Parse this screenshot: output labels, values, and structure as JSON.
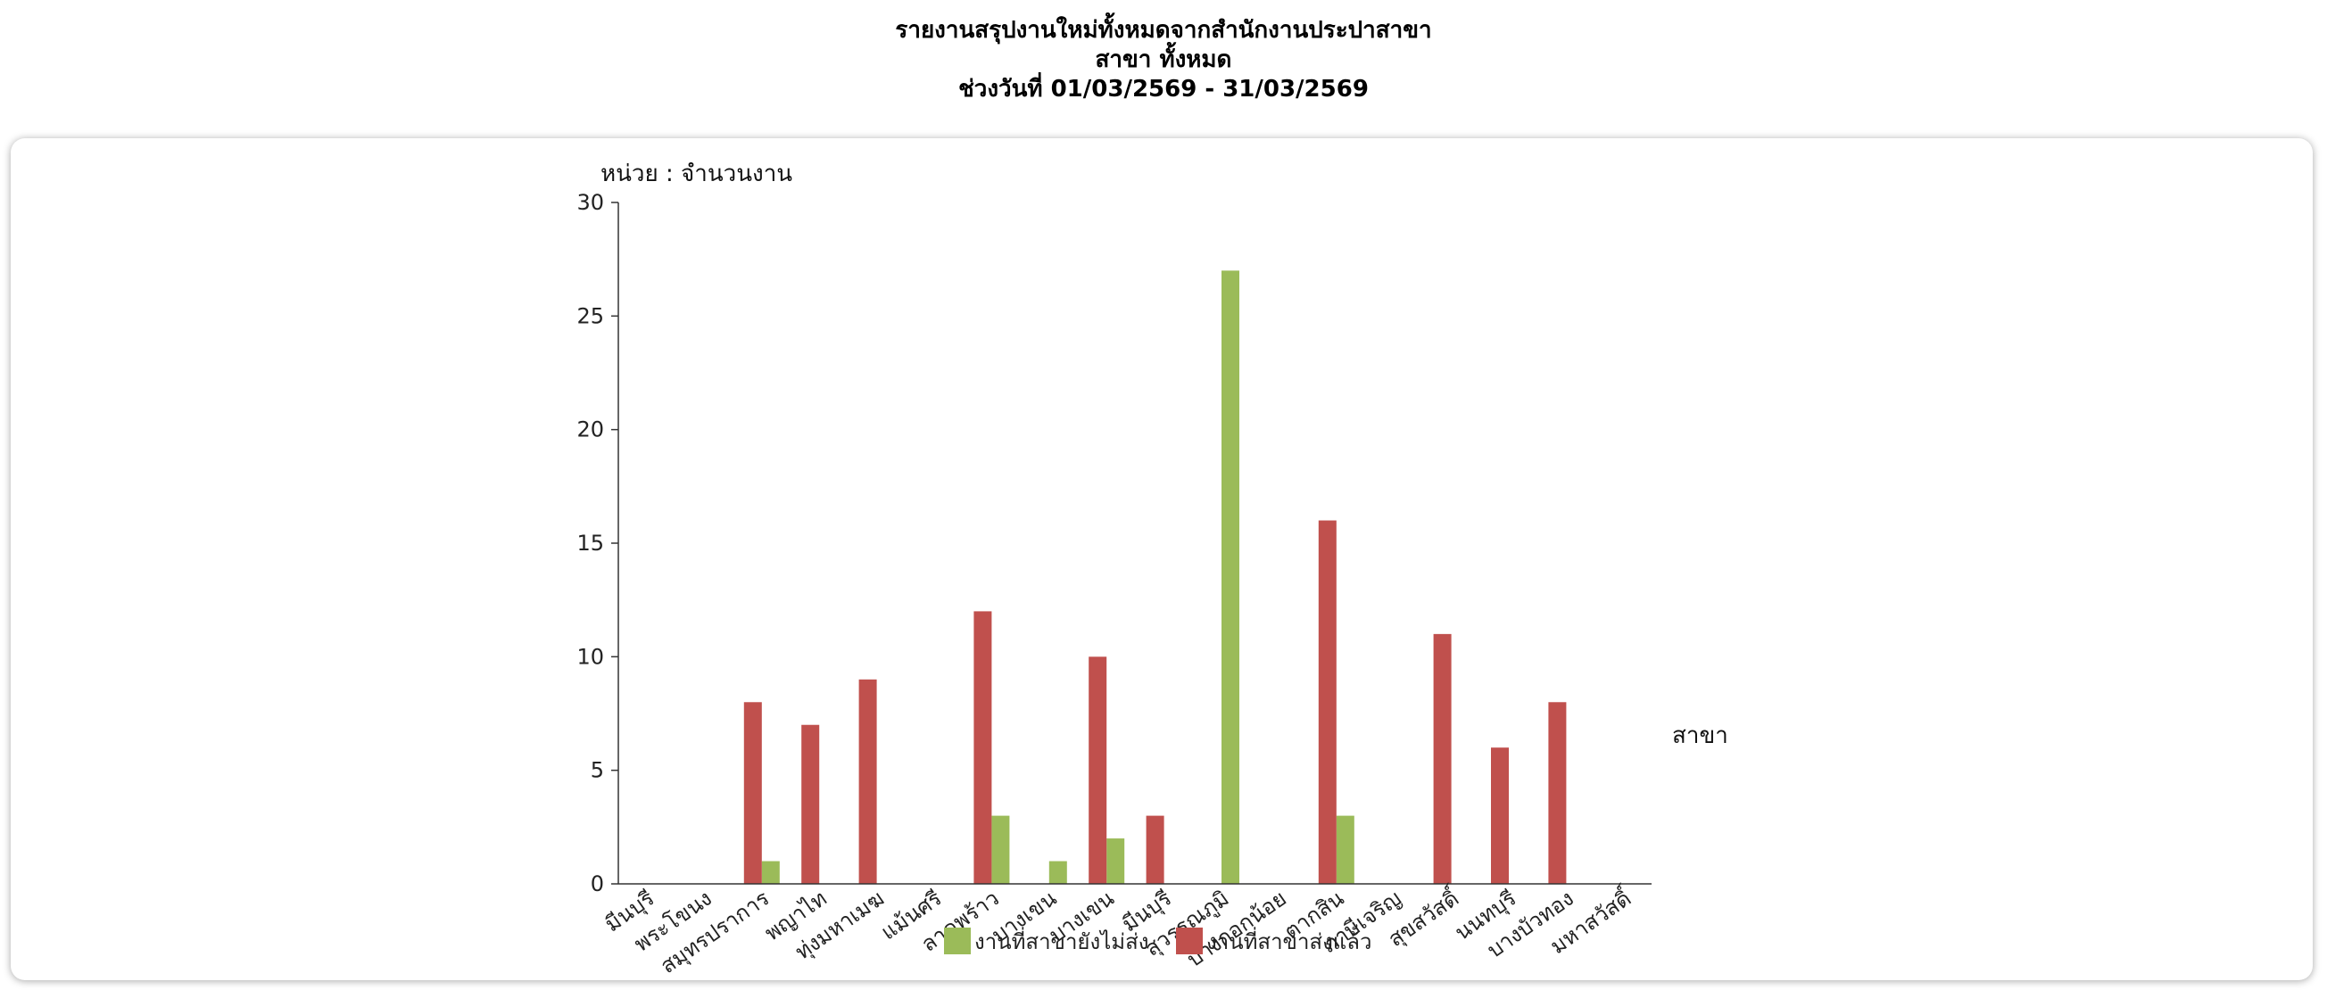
{
  "header": {
    "line1": "รายงานสรุปงานใหม่ทั้งหมดจากสำนักงานประปาสาขา",
    "line2": "สาขา ทั้งหมด",
    "line3": "ช่วงวันที่ 01/03/2569 - 31/03/2569"
  },
  "chart_data": {
    "type": "bar",
    "title": "",
    "ylabel": "หน่วย : จำนวนงาน",
    "xlabel": "สาขา",
    "ylim": [
      0,
      30
    ],
    "yticks": [
      0,
      5,
      10,
      15,
      20,
      25,
      30
    ],
    "grid": false,
    "legend_position": "bottom",
    "categories": [
      "มีนบุรี",
      "พระโขนง",
      "สมุทรปราการ",
      "พญาไท",
      "ทุ่งมหาเมฆ",
      "แม้นศรี",
      "ลาดพร้าว",
      "บางเขน",
      "บางเขน",
      "มีนบุรี",
      "สุวรรณภูมิ",
      "บางกอกน้อย",
      "ตากสิน",
      "ภาษีเจริญ",
      "สุขสวัสดิ์",
      "นนทบุรี",
      "บางบัวทอง",
      "มหาสวัสดิ์"
    ],
    "series": [
      {
        "name": "งานที่สาขายังไม่ส่ง",
        "color": "#9bbb59",
        "values": [
          0,
          0,
          1,
          0,
          0,
          0,
          3,
          1,
          2,
          0,
          27,
          0,
          3,
          0,
          0,
          0,
          0,
          0
        ]
      },
      {
        "name": "งานที่สาขาส่งแล้ว",
        "color": "#c0504d",
        "values": [
          0,
          0,
          8,
          7,
          9,
          0,
          12,
          0,
          10,
          3,
          0,
          0,
          16,
          0,
          11,
          6,
          8,
          0
        ]
      }
    ]
  }
}
